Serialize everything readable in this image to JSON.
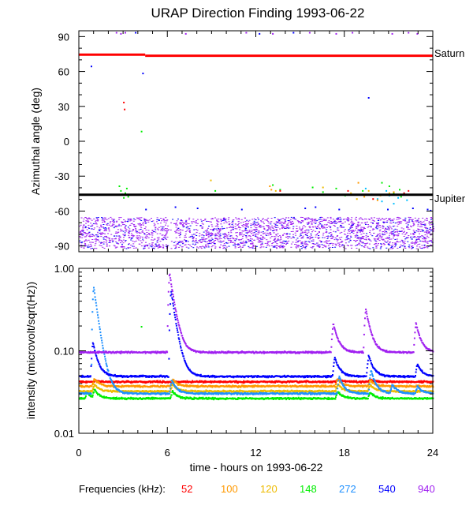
{
  "title": "URAP Direction Finding  1993-06-22",
  "chart_data": [
    {
      "type": "scatter",
      "ylabel": "Azimuthal angle (deg)",
      "xlim": [
        0,
        24
      ],
      "ylim": [
        -95,
        95
      ],
      "yticks": [
        90,
        60,
        30,
        0,
        -30,
        -60,
        -90
      ],
      "reference_lines": [
        {
          "label": "Saturn",
          "color": "#ff0000",
          "segments": [
            {
              "x": [
                0,
                4.5
              ],
              "y": 74.5
            },
            {
              "x": [
                4.5,
                24
              ],
              "y": 73.5
            }
          ]
        },
        {
          "label": "Jupiter",
          "color": "#000000",
          "segments": [
            {
              "x": [
                0,
                24
              ],
              "y": -46
            }
          ]
        }
      ],
      "series": [
        {
          "frequency": "940",
          "color": "#a020f0",
          "bands": [
            {
              "x": [
                0,
                24
              ],
              "y": [
                -92,
                -65
              ]
            }
          ],
          "x": [
            2.5,
            2.8,
            3.1,
            7.2,
            11.3,
            13.1,
            15.6,
            17.4,
            18.5,
            21.2,
            22.3,
            22.9
          ],
          "y": [
            94,
            93,
            94,
            93,
            94,
            93,
            94,
            93,
            94,
            93,
            94,
            93
          ]
        },
        {
          "frequency": "540",
          "color": "#0000ff",
          "x": [
            0.8,
            3.8,
            4.3,
            4.5,
            6.5,
            8.0,
            11.0,
            12.2,
            14.5,
            15.3,
            16.0,
            17.6,
            19.6,
            20.9,
            22.6,
            23.6,
            23.8
          ],
          "y": [
            65,
            94,
            59,
            -58,
            -56,
            -57,
            -58,
            93,
            94,
            -57,
            -56,
            -58,
            38,
            -58,
            -57,
            -58,
            -59
          ]
        },
        {
          "frequency": "272",
          "color": "#00bfff",
          "x": [
            19.4,
            19.8,
            20.2,
            20.5,
            20.8,
            21.0,
            21.3,
            21.6,
            22.0,
            22.2
          ],
          "y": [
            -40,
            -45,
            -49,
            -51,
            -42,
            -46,
            -53,
            -48,
            -44,
            -50
          ]
        },
        {
          "frequency": "148",
          "color": "#00ee00",
          "x": [
            2.7,
            2.8,
            2.9,
            3.0,
            3.1,
            3.2,
            3.3,
            4.2,
            9.2,
            13.1,
            13.6,
            15.8,
            16.5,
            17.4,
            18.0,
            19.2,
            20.5,
            21.0,
            21.3,
            21.7,
            21.8
          ],
          "y": [
            -38,
            -42,
            -45,
            -48,
            -44,
            -40,
            -47,
            9,
            -42,
            -37,
            -41,
            -39,
            -43,
            -40,
            -46,
            -42,
            -35,
            -38,
            -44,
            -41,
            -47
          ]
        },
        {
          "frequency": "120",
          "color": "#eebb00",
          "x": [
            8.9,
            13.3,
            16.5,
            18.4,
            18.8,
            19.6,
            20.4,
            21.0
          ],
          "y": [
            -33,
            -42,
            -39,
            -44,
            -49,
            -42,
            -46,
            -44
          ]
        },
        {
          "frequency": "100",
          "color": "#ff9900",
          "x": [
            12.9,
            13.0,
            18.9,
            19.3,
            20.2,
            21.3
          ],
          "y": [
            -38,
            -41,
            -35,
            -47,
            -50,
            -43
          ]
        },
        {
          "frequency": "52",
          "color": "#ff0000",
          "x": [
            3.0,
            3.05,
            13.6,
            18.2,
            19.9,
            22.0,
            22.3
          ],
          "y": [
            34,
            28,
            -42,
            -42,
            -49,
            -44,
            -42
          ]
        }
      ]
    },
    {
      "type": "line",
      "xlabel": "time - hours on 1993-06-22",
      "ylabel": "intensity (microvolt/sqrt(Hz))",
      "xlim": [
        0,
        24
      ],
      "ylim": [
        0.01,
        1.0
      ],
      "yscale": "log",
      "xticks": [
        0,
        6,
        12,
        18,
        24
      ],
      "xtick_labels": [
        "0",
        "6",
        "12",
        "18",
        "24"
      ],
      "yticks": [
        1.0,
        0.1,
        0.01
      ],
      "ytick_labels": [
        "1.00",
        "0.10",
        "0.01"
      ],
      "legend_title": "Frequencies (kHz):",
      "legend_placement": "bottom",
      "series": [
        {
          "name": "52",
          "color": "#ff0000",
          "base": 0.043,
          "bursts": [
            {
              "t": 1.1,
              "peak": 0.044
            },
            {
              "t": 6.3,
              "peak": 0.043
            },
            {
              "t": 17.5,
              "peak": 0.046
            },
            {
              "t": 19.7,
              "peak": 0.046
            }
          ]
        },
        {
          "name": "100",
          "color": "#ff9900",
          "base": 0.038,
          "bursts": [
            {
              "t": 1.0,
              "peak": 0.047
            },
            {
              "t": 6.3,
              "peak": 0.046
            },
            {
              "t": 17.5,
              "peak": 0.047
            },
            {
              "t": 19.7,
              "peak": 0.045
            }
          ]
        },
        {
          "name": "120",
          "color": "#eebb00",
          "base": 0.033,
          "bursts": [
            {
              "t": 1.0,
              "peak": 0.04
            },
            {
              "t": 6.3,
              "peak": 0.04
            },
            {
              "t": 17.5,
              "peak": 0.04
            },
            {
              "t": 19.7,
              "peak": 0.04
            }
          ]
        },
        {
          "name": "148",
          "color": "#00ee00",
          "base": 0.027,
          "bursts": [
            {
              "t": 0.5,
              "peak": 0.032
            },
            {
              "t": 1.0,
              "peak": 0.035
            },
            {
              "t": 6.3,
              "peak": 0.033
            },
            {
              "t": 17.5,
              "peak": 0.033
            },
            {
              "t": 19.7,
              "peak": 0.032
            }
          ]
        },
        {
          "name": "272",
          "color": "#1e90ff",
          "base": 0.031,
          "bursts": [
            {
              "t": 0.95,
              "peak": 0.62
            },
            {
              "t": 6.25,
              "peak": 0.045
            },
            {
              "t": 17.6,
              "peak": 0.05
            },
            {
              "t": 19.75,
              "peak": 0.06
            },
            {
              "t": 21.2,
              "peak": 0.04
            },
            {
              "t": 22.9,
              "peak": 0.038
            }
          ]
        },
        {
          "name": "540",
          "color": "#0000ff",
          "base": 0.05,
          "bursts": [
            {
              "t": 0.9,
              "peak": 0.13
            },
            {
              "t": 6.2,
              "peak": 0.55
            },
            {
              "t": 17.3,
              "peak": 0.085
            },
            {
              "t": 19.6,
              "peak": 0.09
            },
            {
              "t": 22.9,
              "peak": 0.07
            }
          ]
        },
        {
          "name": "940",
          "color": "#a020f0",
          "base": 0.098,
          "bursts": [
            {
              "t": 6.1,
              "peak": 0.9
            },
            {
              "t": 17.2,
              "peak": 0.22
            },
            {
              "t": 19.4,
              "peak": 0.33
            },
            {
              "t": 22.8,
              "peak": 0.22
            }
          ]
        }
      ],
      "stray_points": [
        {
          "x": 4.2,
          "y": 0.2,
          "color": "#00ee00"
        }
      ]
    }
  ],
  "reference_labels": {
    "saturn": "Saturn",
    "jupiter": "Jupiter"
  }
}
